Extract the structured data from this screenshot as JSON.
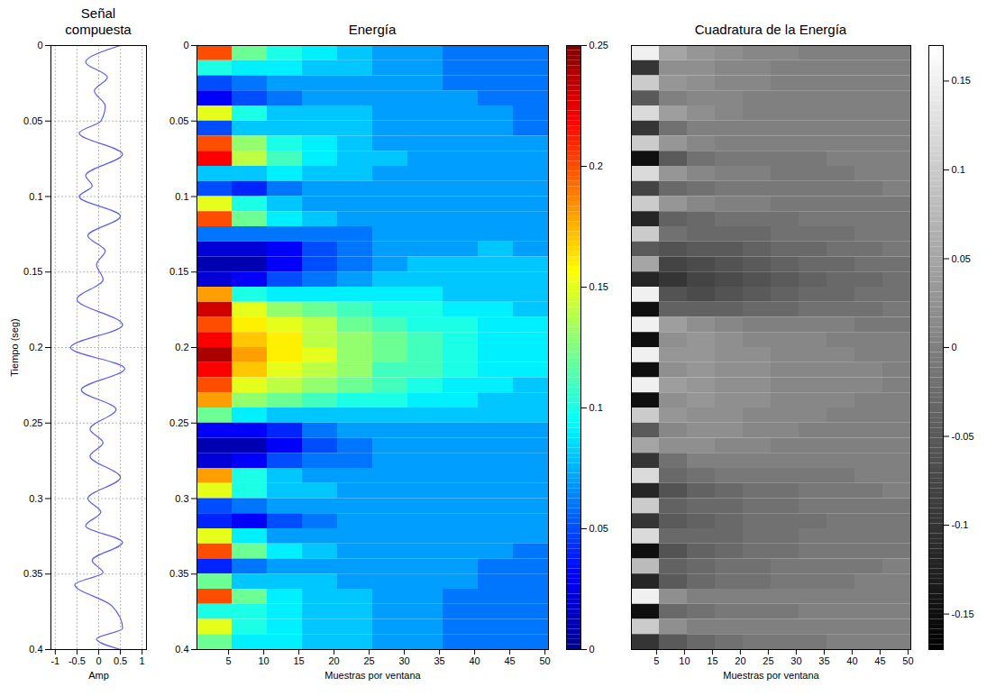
{
  "chart_data": [
    {
      "type": "line",
      "title": "Señal compuesta",
      "xlabel": "Amp",
      "ylabel": "Tiempo (seg)",
      "color": "#5b5bf5",
      "grid": true,
      "x": [
        0.5,
        -0.3,
        0.2,
        -0.1,
        0.15,
        0.05,
        -0.45,
        0.55,
        -0.3,
        -0.15,
        -0.45,
        0.5,
        -0.25,
        0.15,
        -0.05,
        0.1,
        -0.5,
        0.55,
        -0.65,
        0.6,
        -0.4,
        0.4,
        -0.2,
        0.1,
        -0.2,
        0.5,
        -0.25,
        0.05,
        -0.3,
        0.55,
        -0.15,
        0.1,
        -0.55,
        0.3,
        0.55,
        -0.05,
        0.5
      ],
      "y": [
        0.0,
        0.011,
        0.021,
        0.03,
        0.04,
        0.05,
        0.058,
        0.072,
        0.086,
        0.093,
        0.1,
        0.113,
        0.126,
        0.136,
        0.145,
        0.155,
        0.168,
        0.185,
        0.2,
        0.214,
        0.228,
        0.241,
        0.254,
        0.263,
        0.272,
        0.286,
        0.3,
        0.309,
        0.318,
        0.329,
        0.341,
        0.349,
        0.357,
        0.371,
        0.386,
        0.393,
        0.4
      ],
      "xlim": [
        -1.1,
        1.1
      ],
      "xticks": [
        -1,
        -0.5,
        0,
        0.5,
        1
      ],
      "ylim": [
        0,
        0.4
      ],
      "yticks": [
        0,
        0.05,
        0.1,
        0.15,
        0.2,
        0.25,
        0.3,
        0.35,
        0.4
      ]
    },
    {
      "type": "heatmap",
      "title": "Energía",
      "xlabel": "Muestras por ventana",
      "color": "jet",
      "xlim": [
        0.5,
        50.5
      ],
      "xticks": [
        5,
        10,
        15,
        20,
        25,
        30,
        35,
        40,
        45,
        50
      ],
      "ylim": [
        0,
        0.4
      ],
      "yticks": [
        0,
        0.05,
        0.1,
        0.15,
        0.2,
        0.25,
        0.3,
        0.35,
        0.4
      ],
      "xbins": [
        0.5,
        5.5,
        10.5,
        15.5,
        20.5,
        25.5,
        30.5,
        35.5,
        40.5,
        45.5,
        50.5
      ],
      "ybins": [
        0,
        0.01,
        0.02,
        0.03,
        0.04,
        0.05,
        0.06,
        0.07,
        0.08,
        0.09,
        0.1,
        0.11,
        0.12,
        0.13,
        0.14,
        0.15,
        0.16,
        0.17,
        0.18,
        0.19,
        0.2,
        0.21,
        0.22,
        0.23,
        0.24,
        0.25,
        0.26,
        0.27,
        0.28,
        0.29,
        0.3,
        0.31,
        0.32,
        0.33,
        0.34,
        0.35,
        0.36,
        0.37,
        0.38,
        0.39,
        0.4
      ],
      "cells": [
        [
          0.2,
          0.1,
          0.05,
          0.03,
          0.15,
          0.05,
          0.2,
          0.22,
          0.08,
          0.05,
          0.15,
          0.2,
          0.06,
          0.02,
          0.01,
          0.02,
          0.18,
          0.23,
          0.2,
          0.22,
          0.24,
          0.22,
          0.2,
          0.18,
          0.12,
          0.03,
          0.01,
          0.02,
          0.18,
          0.15,
          0.05,
          0.04,
          0.15,
          0.2,
          0.04,
          0.12,
          0.2,
          0.1,
          0.15,
          0.12
        ],
        [
          0.12,
          0.09,
          0.06,
          0.05,
          0.1,
          0.08,
          0.13,
          0.14,
          0.08,
          0.04,
          0.1,
          0.12,
          0.06,
          0.02,
          0.01,
          0.03,
          0.1,
          0.15,
          0.16,
          0.17,
          0.18,
          0.17,
          0.15,
          0.13,
          0.09,
          0.03,
          0.01,
          0.03,
          0.1,
          0.1,
          0.06,
          0.03,
          0.09,
          0.12,
          0.06,
          0.08,
          0.12,
          0.1,
          0.1,
          0.09
        ],
        [
          0.1,
          0.09,
          0.07,
          0.06,
          0.08,
          0.08,
          0.1,
          0.11,
          0.09,
          0.06,
          0.08,
          0.09,
          0.06,
          0.03,
          0.03,
          0.05,
          0.09,
          0.13,
          0.15,
          0.16,
          0.16,
          0.15,
          0.14,
          0.12,
          0.08,
          0.04,
          0.03,
          0.05,
          0.08,
          0.08,
          0.07,
          0.05,
          0.07,
          0.09,
          0.07,
          0.08,
          0.09,
          0.09,
          0.09,
          0.09
        ],
        [
          0.09,
          0.08,
          0.07,
          0.07,
          0.08,
          0.08,
          0.09,
          0.09,
          0.08,
          0.07,
          0.07,
          0.08,
          0.06,
          0.05,
          0.05,
          0.06,
          0.09,
          0.12,
          0.14,
          0.14,
          0.15,
          0.14,
          0.13,
          0.11,
          0.08,
          0.06,
          0.05,
          0.06,
          0.07,
          0.08,
          0.07,
          0.06,
          0.07,
          0.08,
          0.07,
          0.08,
          0.08,
          0.08,
          0.08,
          0.08
        ],
        [
          0.08,
          0.08,
          0.07,
          0.07,
          0.08,
          0.08,
          0.08,
          0.08,
          0.08,
          0.07,
          0.07,
          0.07,
          0.06,
          0.06,
          0.06,
          0.07,
          0.09,
          0.11,
          0.12,
          0.13,
          0.13,
          0.13,
          0.12,
          0.1,
          0.08,
          0.07,
          0.06,
          0.06,
          0.07,
          0.07,
          0.07,
          0.07,
          0.07,
          0.07,
          0.07,
          0.07,
          0.08,
          0.08,
          0.08,
          0.08
        ],
        [
          0.07,
          0.07,
          0.07,
          0.07,
          0.07,
          0.07,
          0.07,
          0.08,
          0.07,
          0.07,
          0.07,
          0.07,
          0.07,
          0.07,
          0.07,
          0.08,
          0.09,
          0.1,
          0.11,
          0.12,
          0.12,
          0.11,
          0.11,
          0.1,
          0.08,
          0.07,
          0.07,
          0.07,
          0.07,
          0.07,
          0.07,
          0.07,
          0.07,
          0.07,
          0.07,
          0.07,
          0.07,
          0.07,
          0.07,
          0.07
        ],
        [
          0.07,
          0.07,
          0.07,
          0.07,
          0.07,
          0.07,
          0.07,
          0.07,
          0.07,
          0.07,
          0.07,
          0.07,
          0.07,
          0.07,
          0.08,
          0.08,
          0.09,
          0.1,
          0.1,
          0.11,
          0.11,
          0.11,
          0.1,
          0.09,
          0.08,
          0.07,
          0.07,
          0.07,
          0.07,
          0.07,
          0.07,
          0.07,
          0.07,
          0.07,
          0.07,
          0.07,
          0.07,
          0.07,
          0.07,
          0.07
        ],
        [
          0.06,
          0.06,
          0.06,
          0.07,
          0.07,
          0.07,
          0.07,
          0.07,
          0.07,
          0.07,
          0.07,
          0.07,
          0.07,
          0.07,
          0.08,
          0.08,
          0.08,
          0.09,
          0.1,
          0.1,
          0.1,
          0.1,
          0.09,
          0.09,
          0.08,
          0.07,
          0.07,
          0.07,
          0.07,
          0.07,
          0.07,
          0.07,
          0.07,
          0.07,
          0.07,
          0.07,
          0.06,
          0.06,
          0.06,
          0.06
        ],
        [
          0.06,
          0.06,
          0.06,
          0.06,
          0.07,
          0.07,
          0.07,
          0.07,
          0.07,
          0.07,
          0.07,
          0.07,
          0.07,
          0.08,
          0.08,
          0.08,
          0.08,
          0.09,
          0.09,
          0.09,
          0.09,
          0.09,
          0.09,
          0.08,
          0.08,
          0.07,
          0.07,
          0.07,
          0.07,
          0.07,
          0.07,
          0.07,
          0.07,
          0.07,
          0.06,
          0.06,
          0.06,
          0.06,
          0.06,
          0.06
        ],
        [
          0.06,
          0.06,
          0.06,
          0.06,
          0.06,
          0.06,
          0.07,
          0.07,
          0.07,
          0.07,
          0.07,
          0.07,
          0.07,
          0.07,
          0.08,
          0.08,
          0.08,
          0.08,
          0.09,
          0.09,
          0.09,
          0.09,
          0.08,
          0.08,
          0.08,
          0.07,
          0.07,
          0.07,
          0.07,
          0.07,
          0.07,
          0.07,
          0.07,
          0.06,
          0.06,
          0.06,
          0.06,
          0.06,
          0.06,
          0.06
        ]
      ],
      "colorbar": {
        "lim": [
          0,
          0.25
        ],
        "ticks": [
          0,
          0.05,
          0.1,
          0.15,
          0.2,
          0.25
        ]
      }
    },
    {
      "type": "heatmap",
      "title": "Cuadratura de la Energía",
      "xlabel": "Muestras por ventana",
      "color": "gray",
      "tick_labels": "x",
      "xlim": [
        0.5,
        50.5
      ],
      "xticks": [
        5,
        10,
        15,
        20,
        25,
        30,
        35,
        40,
        45,
        50
      ],
      "ylim": [
        0,
        0.4
      ],
      "xbins": [
        0.5,
        5.5,
        10.5,
        15.5,
        20.5,
        25.5,
        30.5,
        35.5,
        40.5,
        45.5,
        50.5
      ],
      "ybins": [
        0,
        0.01,
        0.02,
        0.03,
        0.04,
        0.05,
        0.06,
        0.07,
        0.08,
        0.09,
        0.1,
        0.11,
        0.12,
        0.13,
        0.14,
        0.15,
        0.16,
        0.17,
        0.18,
        0.19,
        0.2,
        0.21,
        0.22,
        0.23,
        0.24,
        0.25,
        0.26,
        0.27,
        0.28,
        0.29,
        0.3,
        0.31,
        0.32,
        0.33,
        0.34,
        0.35,
        0.36,
        0.37,
        0.38,
        0.39,
        0.4
      ],
      "cells": [
        [
          0.15,
          -0.1,
          0.1,
          -0.05,
          0.12,
          -0.1,
          0.1,
          -0.15,
          0.12,
          -0.08,
          0.1,
          -0.12,
          0.1,
          -0.05,
          0.05,
          -0.12,
          0.15,
          -0.15,
          0.15,
          -0.15,
          0.15,
          -0.15,
          0.15,
          -0.15,
          0.1,
          -0.05,
          0.05,
          -0.1,
          0.12,
          -0.12,
          0.1,
          -0.1,
          0.12,
          -0.15,
          0.08,
          -0.12,
          0.15,
          -0.15,
          0.1,
          -0.1
        ],
        [
          0.05,
          0.02,
          0.03,
          0,
          0.04,
          -0.02,
          0.03,
          -0.05,
          0.03,
          -0.03,
          0.03,
          -0.04,
          -0.02,
          -0.06,
          -0.08,
          -0.1,
          -0.06,
          -0.04,
          0.04,
          0.02,
          0.03,
          0.02,
          0.04,
          0.02,
          0.03,
          0.01,
          0.02,
          -0.02,
          -0.03,
          -0.06,
          -0.04,
          -0.05,
          -0.03,
          -0.06,
          -0.04,
          -0.05,
          0.02,
          -0.03,
          0.02,
          -0.05
        ],
        [
          0.03,
          0.02,
          0.02,
          0.01,
          0.02,
          0,
          0.01,
          -0.02,
          0.01,
          -0.02,
          0.01,
          -0.03,
          -0.03,
          -0.05,
          -0.07,
          -0.08,
          -0.07,
          -0.04,
          0.02,
          0.03,
          0.03,
          0.03,
          0.03,
          0.03,
          0.02,
          0.02,
          0.02,
          0,
          -0.02,
          -0.04,
          -0.03,
          -0.04,
          -0.03,
          -0.04,
          -0.03,
          -0.03,
          0,
          -0.02,
          0,
          -0.03
        ],
        [
          0.02,
          0.01,
          0.01,
          0.01,
          0.01,
          0,
          0,
          -0.01,
          0,
          -0.01,
          0,
          -0.02,
          -0.03,
          -0.05,
          -0.06,
          -0.07,
          -0.06,
          -0.04,
          0.01,
          0.02,
          0.02,
          0.02,
          0.02,
          0.02,
          0.02,
          0.02,
          0.01,
          0,
          -0.01,
          -0.03,
          -0.03,
          -0.03,
          -0.03,
          -0.03,
          -0.02,
          -0.02,
          0,
          -0.01,
          0,
          -0.02
        ],
        [
          0.01,
          0.01,
          0.01,
          0,
          0,
          0,
          0,
          -0.01,
          0,
          -0.01,
          0,
          -0.02,
          -0.03,
          -0.04,
          -0.05,
          -0.06,
          -0.05,
          -0.03,
          0,
          0.01,
          0.02,
          0.02,
          0.02,
          0.02,
          0.01,
          0.01,
          0.01,
          0,
          -0.01,
          -0.02,
          -0.02,
          -0.02,
          -0.02,
          -0.02,
          -0.02,
          -0.02,
          0,
          -0.01,
          0,
          -0.01
        ],
        [
          0.01,
          0,
          0,
          0,
          0,
          0,
          0,
          -0.01,
          -0.01,
          -0.01,
          -0.01,
          -0.02,
          -0.02,
          -0.03,
          -0.04,
          -0.05,
          -0.04,
          -0.03,
          0,
          0.01,
          0.01,
          0.01,
          0.01,
          0.01,
          0.01,
          0.01,
          0,
          0,
          -0.01,
          -0.02,
          -0.02,
          -0.02,
          -0.02,
          -0.02,
          -0.01,
          -0.01,
          0,
          -0.01,
          0,
          -0.01
        ],
        [
          0,
          0,
          0,
          0,
          0,
          0,
          0,
          -0.01,
          -0.01,
          -0.01,
          -0.01,
          -0.01,
          -0.02,
          -0.03,
          -0.03,
          -0.04,
          -0.03,
          -0.02,
          0,
          0.01,
          0.01,
          0.01,
          0.01,
          0.01,
          0.01,
          0,
          0,
          0,
          -0.01,
          -0.01,
          -0.01,
          -0.02,
          -0.01,
          -0.01,
          -0.01,
          -0.01,
          0,
          0,
          0,
          -0.01
        ],
        [
          0,
          0,
          0,
          0,
          0,
          0,
          0,
          0,
          -0.01,
          -0.01,
          -0.01,
          -0.01,
          -0.02,
          -0.02,
          -0.03,
          -0.03,
          -0.03,
          -0.02,
          0,
          0,
          0.01,
          0.01,
          0.01,
          0.01,
          0,
          0,
          0,
          0,
          -0.01,
          -0.01,
          -0.01,
          -0.01,
          -0.01,
          -0.01,
          -0.01,
          -0.01,
          0,
          0,
          0,
          0
        ],
        [
          0,
          0,
          0,
          0,
          0,
          0,
          0,
          0,
          0,
          -0.01,
          -0.01,
          -0.01,
          -0.01,
          -0.02,
          -0.02,
          -0.03,
          -0.02,
          -0.02,
          -0.01,
          0,
          0,
          0.01,
          0.01,
          0,
          0,
          0,
          0,
          0,
          0,
          -0.01,
          -0.01,
          -0.01,
          -0.01,
          -0.01,
          -0.01,
          0,
          0,
          0,
          0,
          0
        ],
        [
          0,
          0,
          0,
          0,
          0,
          0,
          0,
          0,
          0,
          0,
          -0.01,
          -0.01,
          -0.01,
          -0.01,
          -0.02,
          -0.02,
          -0.02,
          -0.01,
          -0.01,
          0,
          0,
          0,
          0,
          0,
          0,
          0,
          0,
          0,
          0,
          0,
          -0.01,
          -0.01,
          -0.01,
          -0.01,
          0,
          0,
          0,
          0,
          0,
          0
        ]
      ],
      "colorbar": {
        "lim": [
          -0.17,
          0.17
        ],
        "ticks": [
          -0.15,
          -0.1,
          -0.05,
          0,
          0.05,
          0.1,
          0.15
        ]
      }
    }
  ]
}
